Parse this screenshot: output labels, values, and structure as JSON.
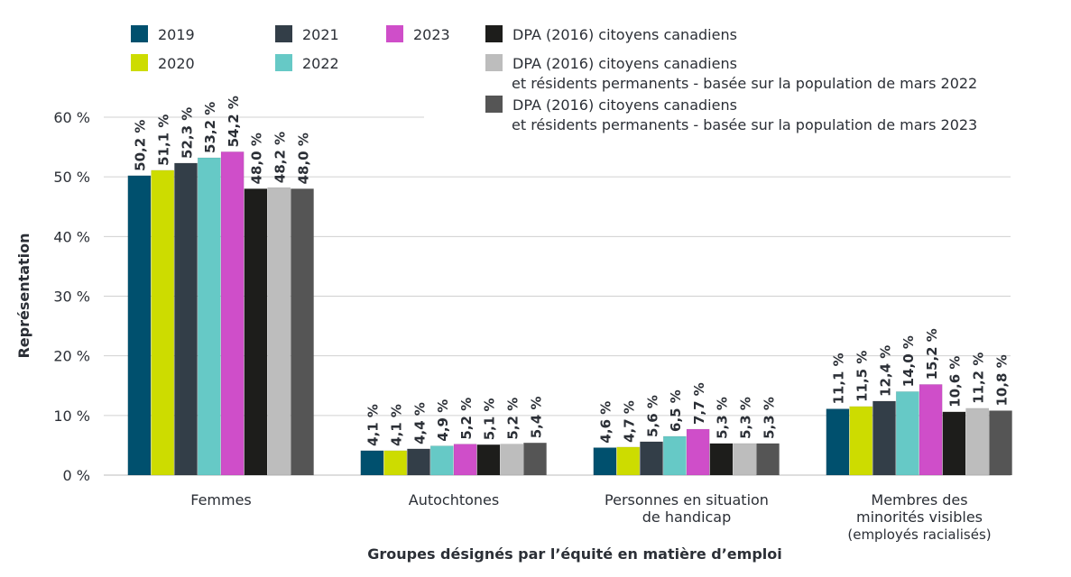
{
  "chart_data": {
    "type": "bar",
    "title": "",
    "xlabel": "Groupes désignés par l’équité en matière d’emploi",
    "ylabel": "Représentation",
    "ylim": [
      0,
      60
    ],
    "yticks": [
      "0 %",
      "10 %",
      "20 %",
      "30 %",
      "40 %",
      "50 %",
      "60 %"
    ],
    "grid": true,
    "legend_position": "top",
    "categories": [
      [
        "Femmes"
      ],
      [
        "Autochtones"
      ],
      [
        "Personnes en situation",
        "de handicap"
      ],
      [
        "Membres des",
        "minorités visibles",
        "(employés racialisés)"
      ]
    ],
    "series": [
      {
        "name": "2019",
        "color": "#00506e",
        "values": [
          50.2,
          4.1,
          4.6,
          11.1
        ],
        "labels": [
          "50,2 %",
          "4,1 %",
          "4,6 %",
          "11,1 %"
        ]
      },
      {
        "name": "2020",
        "color": "#cddc00",
        "values": [
          51.1,
          4.1,
          4.7,
          11.5
        ],
        "labels": [
          "51,1 %",
          "4,1 %",
          "4,7 %",
          "11,5 %"
        ]
      },
      {
        "name": "2021",
        "color": "#333e48",
        "values": [
          52.3,
          4.4,
          5.6,
          12.4
        ],
        "labels": [
          "52,3 %",
          "4,4 %",
          "5,6 %",
          "12,4 %"
        ]
      },
      {
        "name": "2022",
        "color": "#66c9c6",
        "values": [
          53.2,
          4.9,
          6.5,
          14.0
        ],
        "labels": [
          "53,2 %",
          "4,9 %",
          "6,5 %",
          "14,0 %"
        ]
      },
      {
        "name": "2023",
        "color": "#cf4ec9",
        "values": [
          54.2,
          5.2,
          7.7,
          15.2
        ],
        "labels": [
          "54,2 %",
          "5,2 %",
          "7,7 %",
          "15,2 %"
        ]
      },
      {
        "name": "DPA (2016) citoyens canadiens",
        "color": "#1d1d1b",
        "values": [
          48.0,
          5.1,
          5.3,
          10.6
        ],
        "labels": [
          "48,0 %",
          "5,1 %",
          "5,3 %",
          "10,6 %"
        ]
      },
      {
        "name": "DPA (2016) citoyens canadiens\net résidents permanents - basée sur la population de mars 2022",
        "color": "#bdbdbd",
        "values": [
          48.2,
          5.2,
          5.3,
          11.2
        ],
        "labels": [
          "48,2 %",
          "5,2 %",
          "5,3 %",
          "11,2 %"
        ]
      },
      {
        "name": "DPA (2016) citoyens canadiens\net résidents permanents - basée sur la population de mars 2023",
        "color": "#555555",
        "values": [
          48.0,
          5.4,
          5.3,
          10.8
        ],
        "labels": [
          "48,0 %",
          "5,4 %",
          "5,3 %",
          "10,8 %"
        ]
      }
    ]
  }
}
